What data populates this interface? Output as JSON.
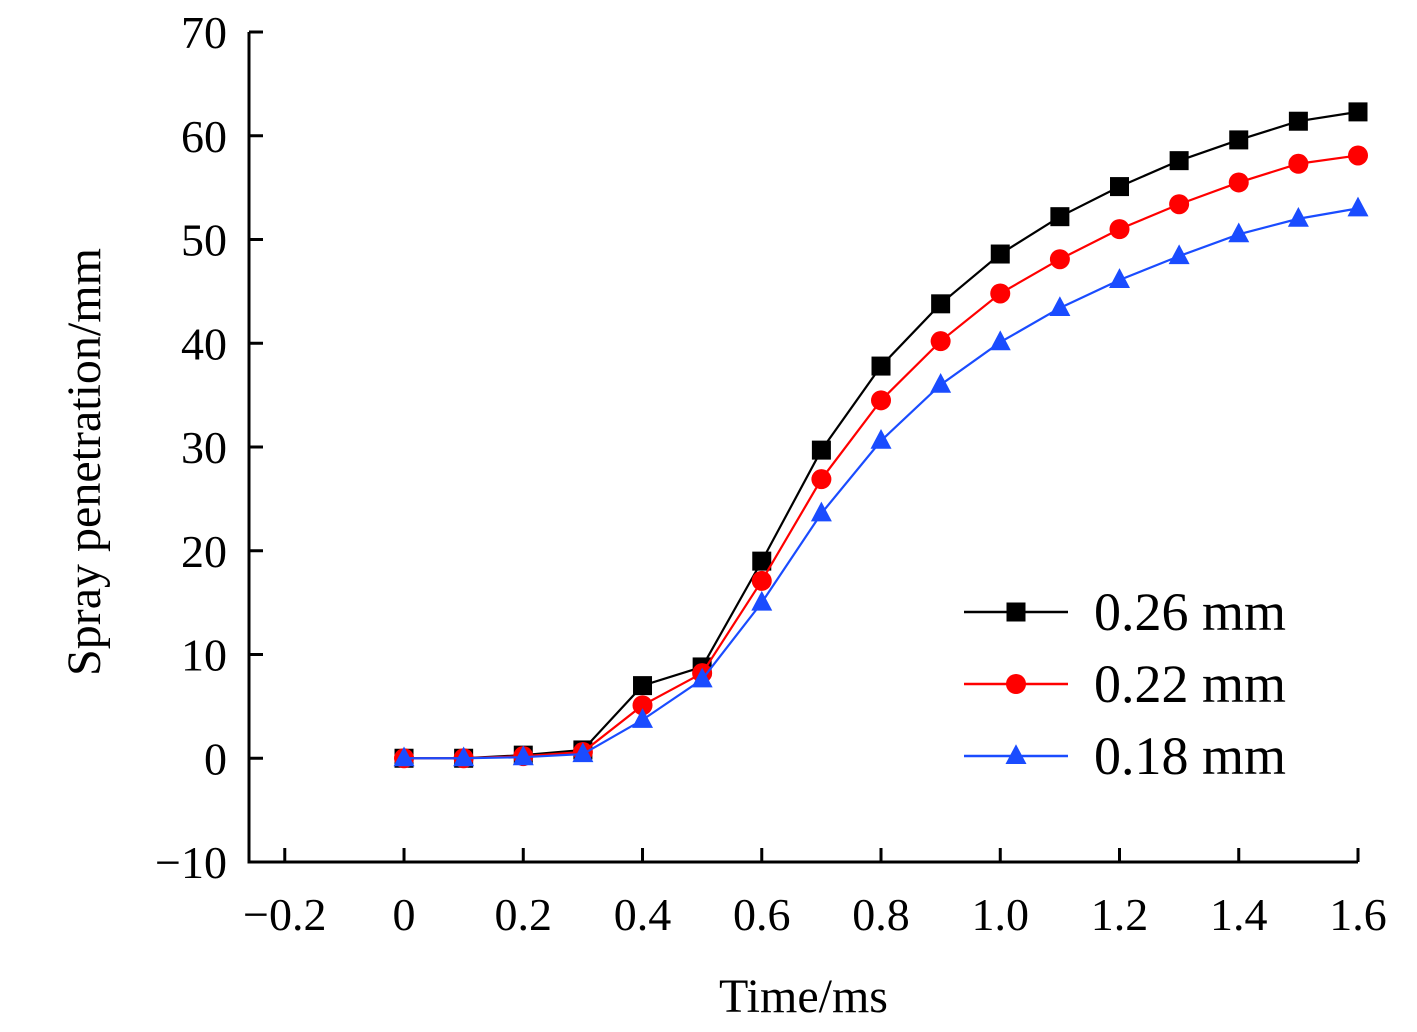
{
  "chart_data": {
    "type": "line",
    "title": "",
    "xlabel": "Time/ms",
    "ylabel": "Spray penetration/mm",
    "xlim": [
      -0.26,
      1.6
    ],
    "ylim": [
      -10,
      70
    ],
    "xticks": [
      -0.2,
      0,
      0.2,
      0.4,
      0.6,
      0.8,
      1.0,
      1.2,
      1.4,
      1.6
    ],
    "xtick_labels": [
      "−0.2",
      "0",
      "0.2",
      "0.4",
      "0.6",
      "0.8",
      "1.0",
      "1.2",
      "1.4",
      "1.6"
    ],
    "yticks": [
      -10,
      0,
      10,
      20,
      30,
      40,
      50,
      60,
      70
    ],
    "ytick_labels": [
      "−10",
      "0",
      "10",
      "20",
      "30",
      "40",
      "50",
      "60",
      "70"
    ],
    "grid": false,
    "legend_position": "lower-right",
    "x": [
      0,
      0.1,
      0.2,
      0.3,
      0.4,
      0.5,
      0.6,
      0.7,
      0.8,
      0.9,
      1.0,
      1.1,
      1.2,
      1.3,
      1.4,
      1.5,
      1.6
    ],
    "series": [
      {
        "name": "0.26 mm",
        "color": "#000000",
        "marker": "square",
        "values": [
          0,
          0,
          0.3,
          0.8,
          7.0,
          8.8,
          19.0,
          29.7,
          37.8,
          43.8,
          48.6,
          52.2,
          55.1,
          57.6,
          59.6,
          61.4,
          62.3
        ]
      },
      {
        "name": "0.22 mm",
        "color": "#ff0000",
        "marker": "circle",
        "values": [
          0,
          0,
          0.2,
          0.6,
          5.1,
          8.2,
          17.1,
          26.9,
          34.5,
          40.2,
          44.8,
          48.1,
          51.0,
          53.4,
          55.5,
          57.3,
          58.1
        ]
      },
      {
        "name": "0.18 mm",
        "color": "#1a4cff",
        "marker": "triangle",
        "values": [
          0,
          0,
          0.1,
          0.4,
          3.7,
          7.6,
          15.0,
          23.6,
          30.6,
          36.0,
          40.1,
          43.4,
          46.1,
          48.4,
          50.5,
          52.0,
          53.0
        ]
      }
    ]
  }
}
